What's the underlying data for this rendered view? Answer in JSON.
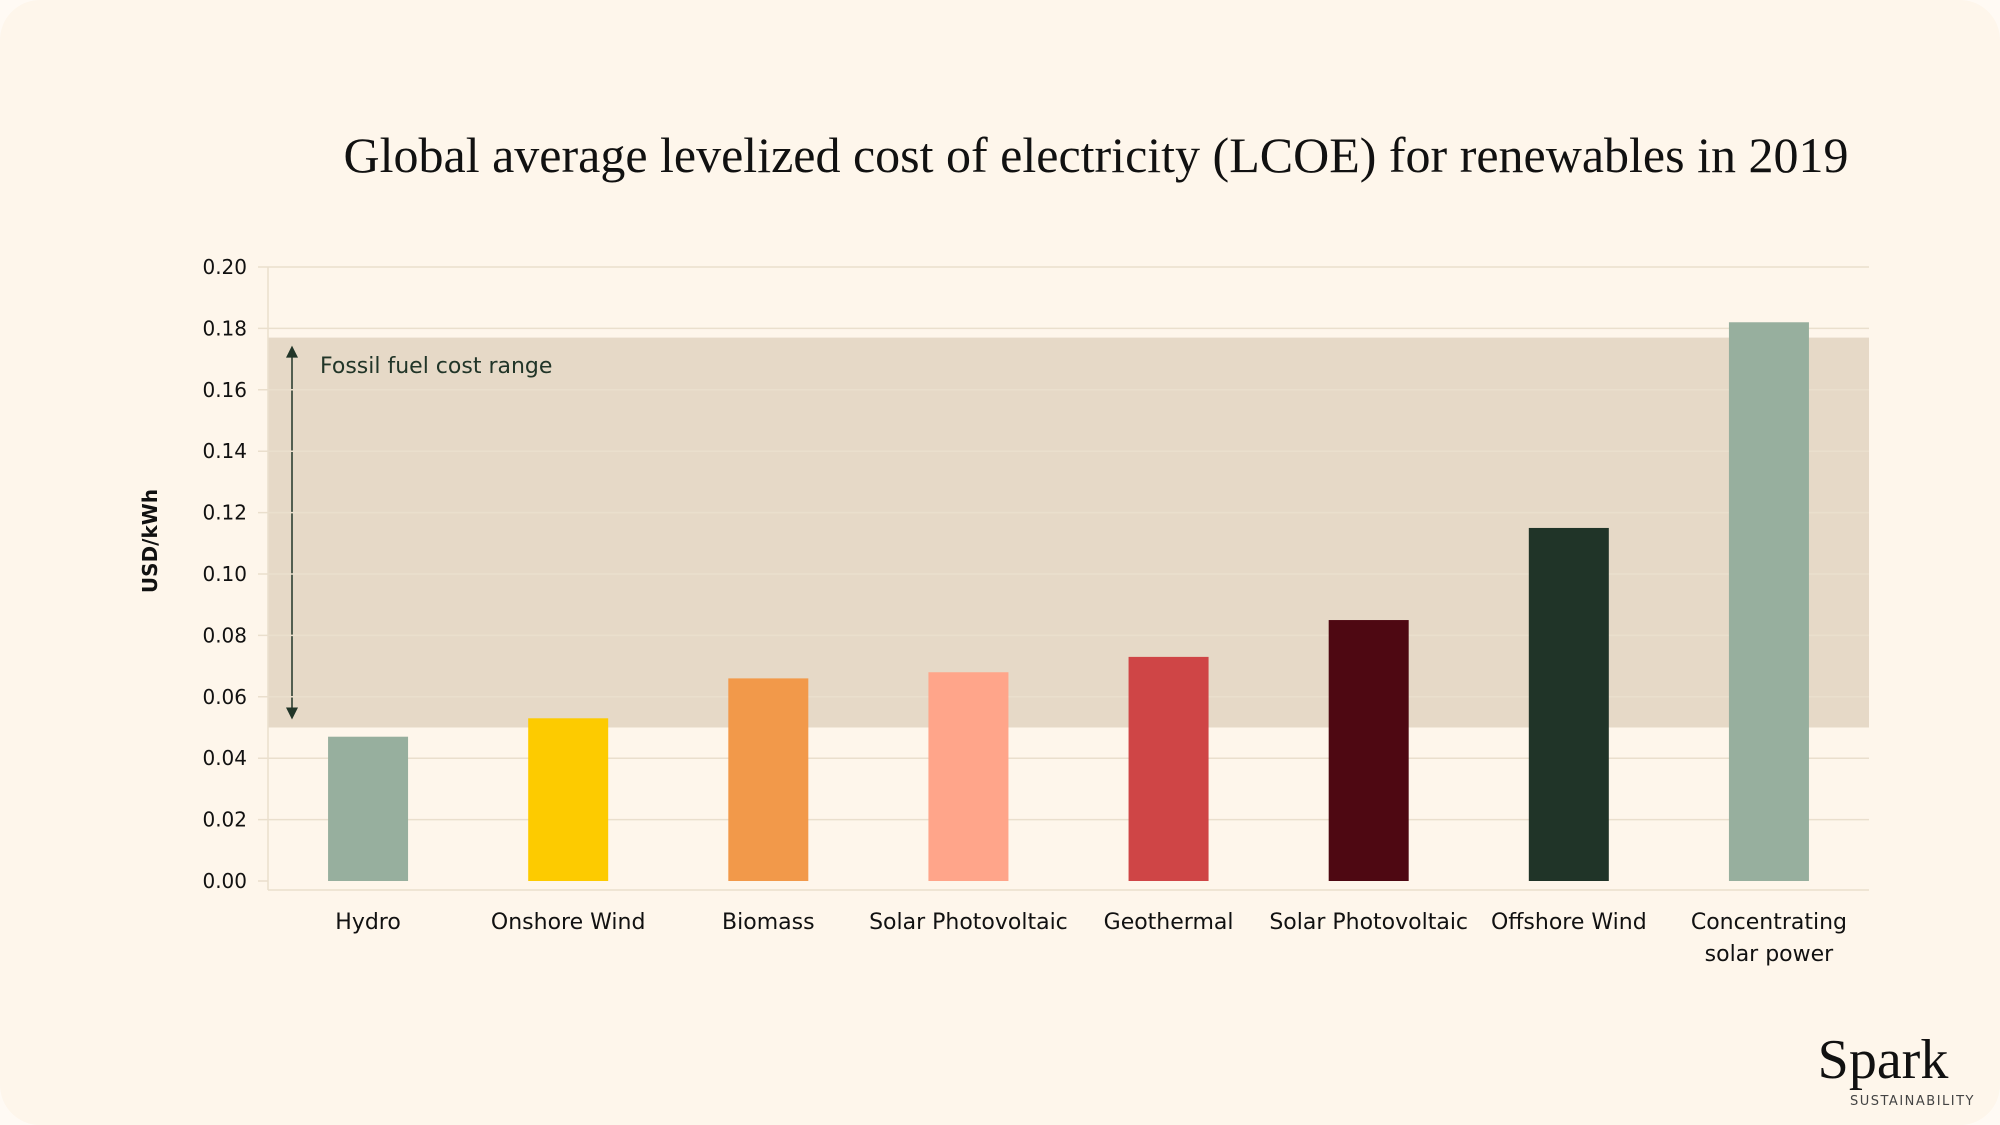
{
  "chart_data": {
    "type": "bar",
    "title": "Global average levelized cost of electricity (LCOE) for renewables in 2019",
    "ylabel": "USD/kWh",
    "xlabel": "",
    "ylim": [
      0,
      0.2
    ],
    "yticks": [
      "0.00",
      "0.02",
      "0.04",
      "0.06",
      "0.08",
      "0.10",
      "0.12",
      "0.14",
      "0.16",
      "0.18",
      "0.20"
    ],
    "grid": "horizontal",
    "categories": [
      [
        "Hydro"
      ],
      [
        "Onshore Wind"
      ],
      [
        "Biomass"
      ],
      [
        "Solar Photovoltaic"
      ],
      [
        "Geothermal"
      ],
      [
        "Solar Photovoltaic"
      ],
      [
        "Offshore Wind"
      ],
      [
        "Concentrating",
        "solar power"
      ]
    ],
    "values": [
      0.047,
      0.053,
      0.066,
      0.068,
      0.073,
      0.085,
      0.115,
      0.182
    ],
    "colors": [
      "#97af9e",
      "#fdcb00",
      "#f2994a",
      "#ffa58a",
      "#cf4546",
      "#4e0812",
      "#203428",
      "#97af9e"
    ],
    "annotation": {
      "label": "Fossil fuel cost range",
      "range": [
        0.05,
        0.177
      ],
      "band_color": "#e6d9c7",
      "arrow_color": "#213528"
    }
  },
  "logo": {
    "name": "Spark",
    "subtitle": "SUSTAINABILITY"
  }
}
